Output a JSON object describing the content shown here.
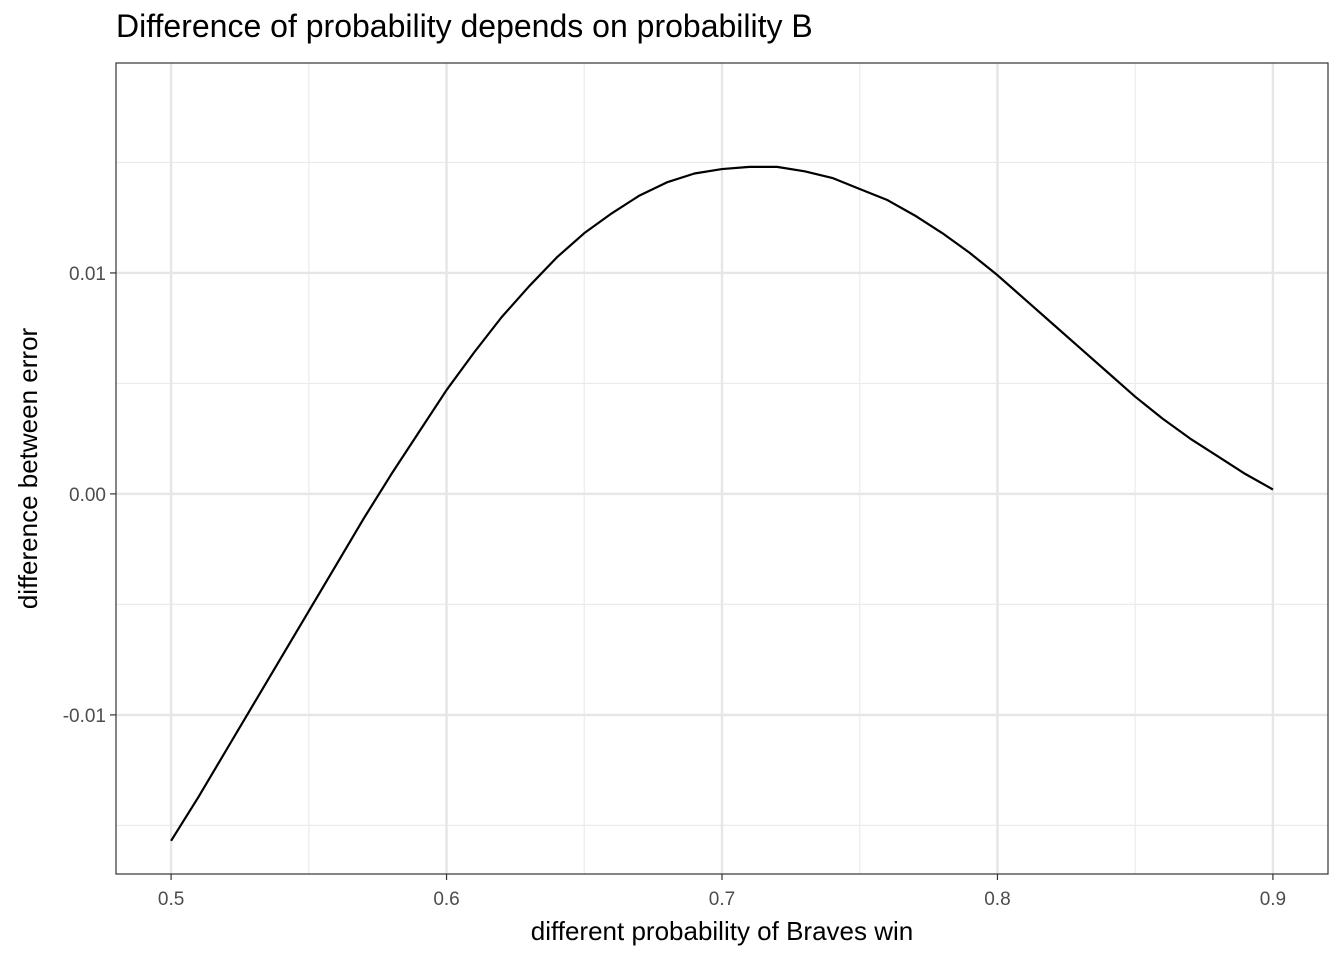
{
  "chart_data": {
    "type": "line",
    "title": "Difference of probability depends on probability B",
    "xlabel": "different probability of Braves win",
    "ylabel": "difference between error",
    "xlim": [
      0.48,
      0.92
    ],
    "ylim": [
      -0.0172,
      0.0195
    ],
    "x_ticks": [
      0.5,
      0.6,
      0.7,
      0.8,
      0.9
    ],
    "x_tick_labels": [
      "0.5",
      "0.6",
      "0.7",
      "0.8",
      "0.9"
    ],
    "y_ticks": [
      -0.01,
      0.0,
      0.01
    ],
    "y_tick_labels": [
      "-0.01",
      "0.00",
      "0.01"
    ],
    "grid": true,
    "legend": "none",
    "line_color": "#000000",
    "series": [
      {
        "x": [
          0.5,
          0.51,
          0.52,
          0.53,
          0.54,
          0.55,
          0.56,
          0.57,
          0.58,
          0.59,
          0.6,
          0.61,
          0.62,
          0.63,
          0.64,
          0.65,
          0.66,
          0.67,
          0.68,
          0.69,
          0.7,
          0.71,
          0.72,
          0.73,
          0.74,
          0.75,
          0.76,
          0.77,
          0.78,
          0.79,
          0.8,
          0.81,
          0.82,
          0.83,
          0.84,
          0.85,
          0.86,
          0.87,
          0.88,
          0.89,
          0.9
        ],
        "y": [
          -0.0157,
          -0.0137,
          -0.0116,
          -0.0095,
          -0.0074,
          -0.0053,
          -0.0032,
          -0.0011,
          0.0009,
          0.0028,
          0.0047,
          0.0064,
          0.008,
          0.0094,
          0.0107,
          0.0118,
          0.0127,
          0.0135,
          0.0141,
          0.0145,
          0.0147,
          0.0148,
          0.0148,
          0.0146,
          0.0143,
          0.0138,
          0.0133,
          0.0126,
          0.0118,
          0.0109,
          0.0099,
          0.0088,
          0.0077,
          0.0066,
          0.0055,
          0.0044,
          0.0034,
          0.0025,
          0.0017,
          0.0009,
          0.0002
        ]
      }
    ]
  }
}
